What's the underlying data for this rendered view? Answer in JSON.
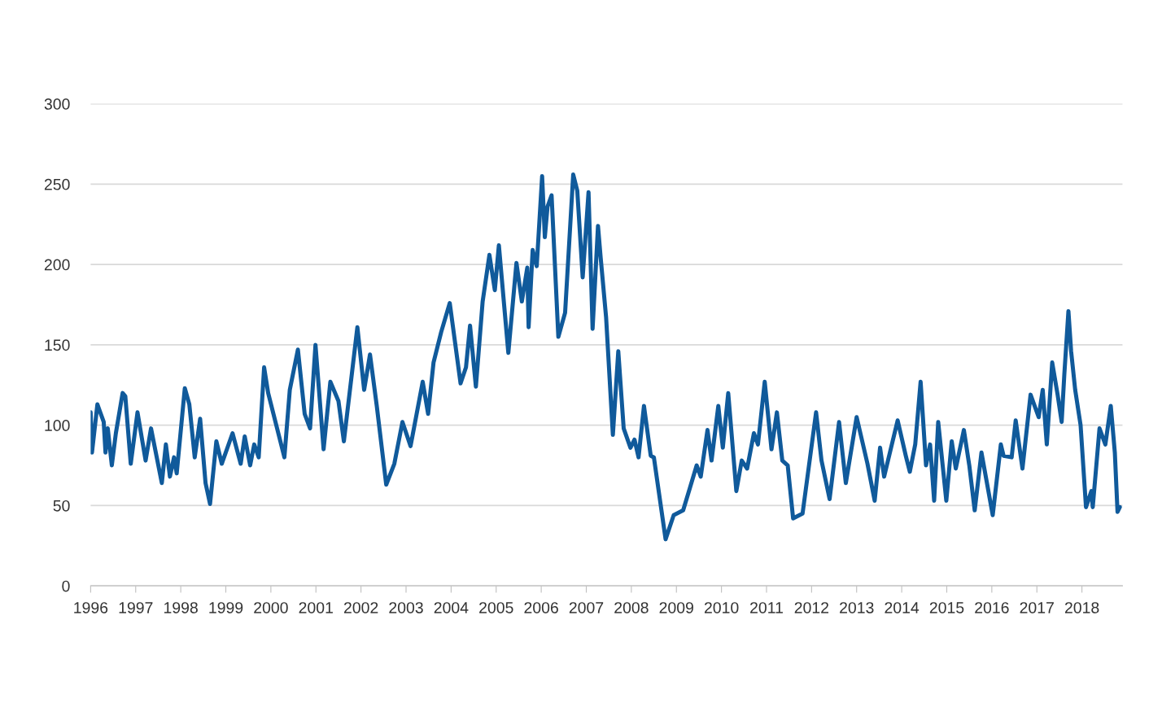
{
  "chart_data": {
    "type": "line",
    "x": [
      1996.0,
      1996.03,
      1996.15,
      1996.29,
      1996.33,
      1996.38,
      1996.47,
      1996.56,
      1996.71,
      1996.77,
      1996.89,
      1997.04,
      1997.22,
      1997.34,
      1997.58,
      1997.67,
      1997.76,
      1997.85,
      1997.91,
      1998.09,
      1998.19,
      1998.31,
      1998.43,
      1998.55,
      1998.65,
      1998.79,
      1998.91,
      1999.15,
      1999.33,
      1999.42,
      1999.54,
      1999.63,
      1999.73,
      1999.85,
      1999.94,
      2000.12,
      2000.3,
      2000.42,
      2000.6,
      2000.75,
      2000.87,
      2000.99,
      2001.17,
      2001.32,
      2001.5,
      2001.62,
      2001.92,
      2002.07,
      2002.2,
      2002.35,
      2002.56,
      2002.74,
      2002.92,
      2003.1,
      2003.37,
      2003.49,
      2003.61,
      2003.78,
      2003.97,
      2004.21,
      2004.33,
      2004.42,
      2004.55,
      2004.7,
      2004.85,
      2004.97,
      2005.06,
      2005.27,
      2005.45,
      2005.57,
      2005.69,
      2005.72,
      2005.81,
      2005.9,
      2006.02,
      2006.08,
      2006.14,
      2006.23,
      2006.38,
      2006.53,
      2006.71,
      2006.8,
      2006.92,
      2007.05,
      2007.14,
      2007.26,
      2007.32,
      2007.44,
      2007.59,
      2007.71,
      2007.83,
      2007.98,
      2008.07,
      2008.16,
      2008.28,
      2008.43,
      2008.5,
      2008.76,
      2008.94,
      2009.15,
      2009.3,
      2009.45,
      2009.54,
      2009.69,
      2009.78,
      2009.93,
      2010.03,
      2010.15,
      2010.33,
      2010.45,
      2010.57,
      2010.72,
      2010.81,
      2010.96,
      2011.11,
      2011.23,
      2011.35,
      2011.47,
      2011.59,
      2011.8,
      2012.1,
      2012.22,
      2012.4,
      2012.61,
      2012.76,
      2013.0,
      2013.24,
      2013.4,
      2013.52,
      2013.61,
      2013.91,
      2014.09,
      2014.18,
      2014.3,
      2014.42,
      2014.54,
      2014.63,
      2014.72,
      2014.81,
      2014.99,
      2015.11,
      2015.2,
      2015.38,
      2015.5,
      2015.62,
      2015.77,
      2016.02,
      2016.2,
      2016.26,
      2016.44,
      2016.53,
      2016.68,
      2016.86,
      2017.04,
      2017.13,
      2017.22,
      2017.34,
      2017.46,
      2017.55,
      2017.61,
      2017.7,
      2017.76,
      2017.85,
      2017.97,
      2018.09,
      2018.21,
      2018.24,
      2018.39,
      2018.52,
      2018.64,
      2018.73,
      2018.79,
      2018.84
    ],
    "series": [
      {
        "color": "#105a9b",
        "values": [
          108,
          83,
          113,
          102,
          83,
          98,
          75,
          95,
          120,
          118,
          76,
          108,
          78,
          98,
          64,
          88,
          68,
          80,
          70,
          123,
          113,
          80,
          104,
          64,
          51,
          90,
          76,
          95,
          76,
          93,
          75,
          88,
          80,
          136,
          120,
          100,
          80,
          122,
          147,
          107,
          98,
          150,
          85,
          127,
          115,
          90,
          161,
          122,
          144,
          112,
          63,
          76,
          102,
          87,
          127,
          107,
          139,
          158,
          176,
          126,
          136,
          162,
          124,
          177,
          206,
          184,
          212,
          145,
          201,
          177,
          198,
          161,
          209,
          199,
          255,
          217,
          236,
          243,
          155,
          170,
          256,
          246,
          192,
          245,
          160,
          224,
          204,
          167,
          94,
          146,
          98,
          86,
          91,
          80,
          112,
          81,
          80,
          29,
          44,
          47,
          61,
          75,
          68,
          97,
          78,
          112,
          86,
          120,
          59,
          78,
          73,
          95,
          88,
          127,
          85,
          108,
          78,
          75,
          42,
          45,
          108,
          78,
          54,
          102,
          64,
          105,
          76,
          53,
          86,
          68,
          103,
          81,
          71,
          88,
          127,
          75,
          88,
          53,
          102,
          53,
          90,
          73,
          97,
          75,
          47,
          83,
          44,
          88,
          81,
          80,
          103,
          73,
          119,
          105,
          122,
          88,
          139,
          119,
          102,
          132,
          171,
          146,
          122,
          100,
          49,
          59,
          49,
          98,
          88,
          112,
          83,
          46,
          49
        ]
      }
    ],
    "xlim": [
      1996,
      2018.9
    ],
    "xticks": [
      1996,
      1997,
      1998,
      1999,
      2000,
      2001,
      2002,
      2003,
      2004,
      2005,
      2006,
      2007,
      2008,
      2009,
      2010,
      2011,
      2012,
      2013,
      2014,
      2015,
      2016,
      2017,
      2018
    ],
    "ylim": [
      0,
      300
    ],
    "yticks": [
      0,
      50,
      100,
      150,
      200,
      250,
      300
    ],
    "grid": "y",
    "marker": "none",
    "line_style": "solid"
  }
}
